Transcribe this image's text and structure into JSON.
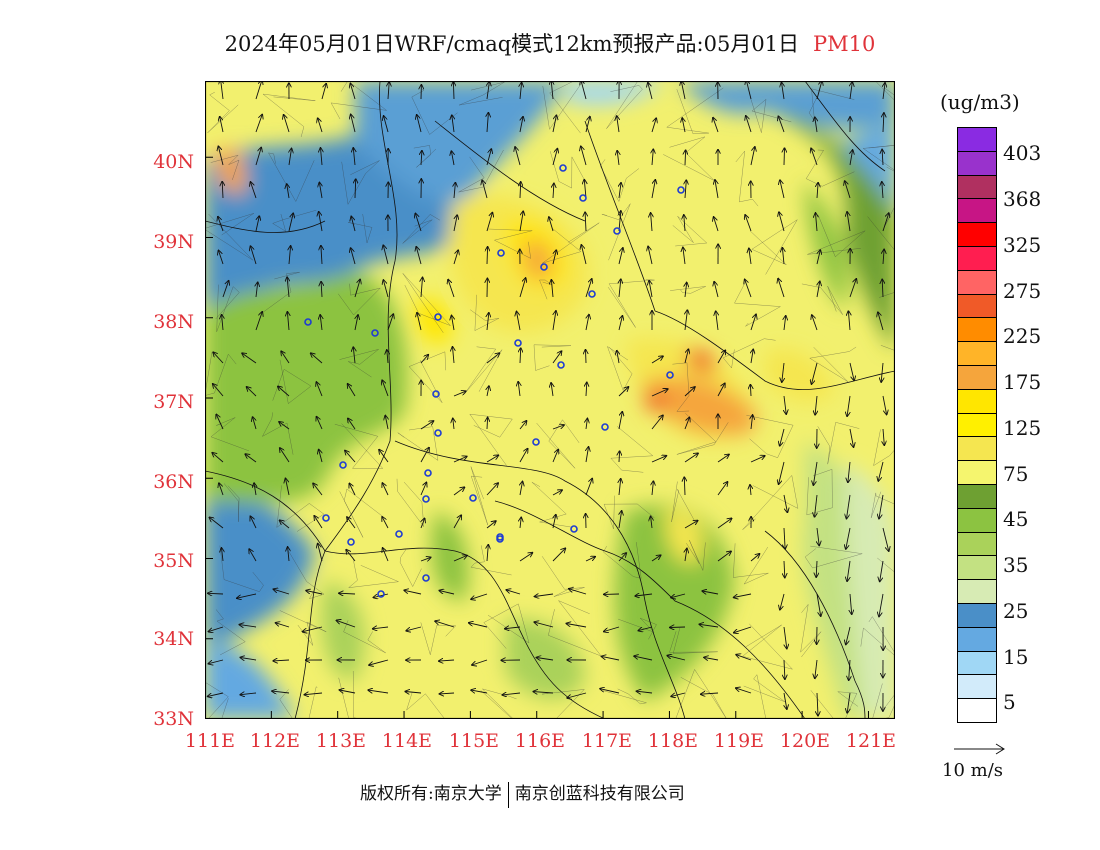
{
  "title": {
    "main": "2024年05月01日WRF/cmaq模式12km预报产品:05月01日",
    "variable": "PM10"
  },
  "map": {
    "lat_labels": [
      "40N",
      "39N",
      "38N",
      "37N",
      "36N",
      "35N",
      "34N",
      "33N"
    ],
    "lon_labels": [
      "111E",
      "112E",
      "113E",
      "114E",
      "115E",
      "116E",
      "117E",
      "118E",
      "119E",
      "120E",
      "121E"
    ],
    "extent": {
      "lon_min": 111,
      "lon_max": 121.4,
      "lat_min": 33,
      "lat_max": 40.95
    }
  },
  "colorbar": {
    "unit": "(ug/m3)",
    "labels": [
      "403",
      "368",
      "325",
      "275",
      "225",
      "175",
      "125",
      "75",
      "45",
      "35",
      "25",
      "15",
      "5"
    ],
    "colors": [
      "#8a2be2",
      "#9932cc",
      "#b03060",
      "#c71585",
      "#ff0000",
      "#ff1e50",
      "#ff6464",
      "#f05a28",
      "#ff8c00",
      "#ffb428",
      "#f5a53c",
      "#ffe600",
      "#fff000",
      "#f5e650",
      "#f5f56e",
      "#6ea032",
      "#8cc341",
      "#aad25a",
      "#c3e182",
      "#d7ebb4",
      "#4a8fc8",
      "#64a9e1",
      "#a0d7f5",
      "#d2ebfa",
      "#ffffff"
    ]
  },
  "wind_reference": {
    "label": "10 m/s"
  },
  "footer": {
    "copyright": "版权所有:南京大学",
    "company": "南京创蓝科技有限公司"
  }
}
